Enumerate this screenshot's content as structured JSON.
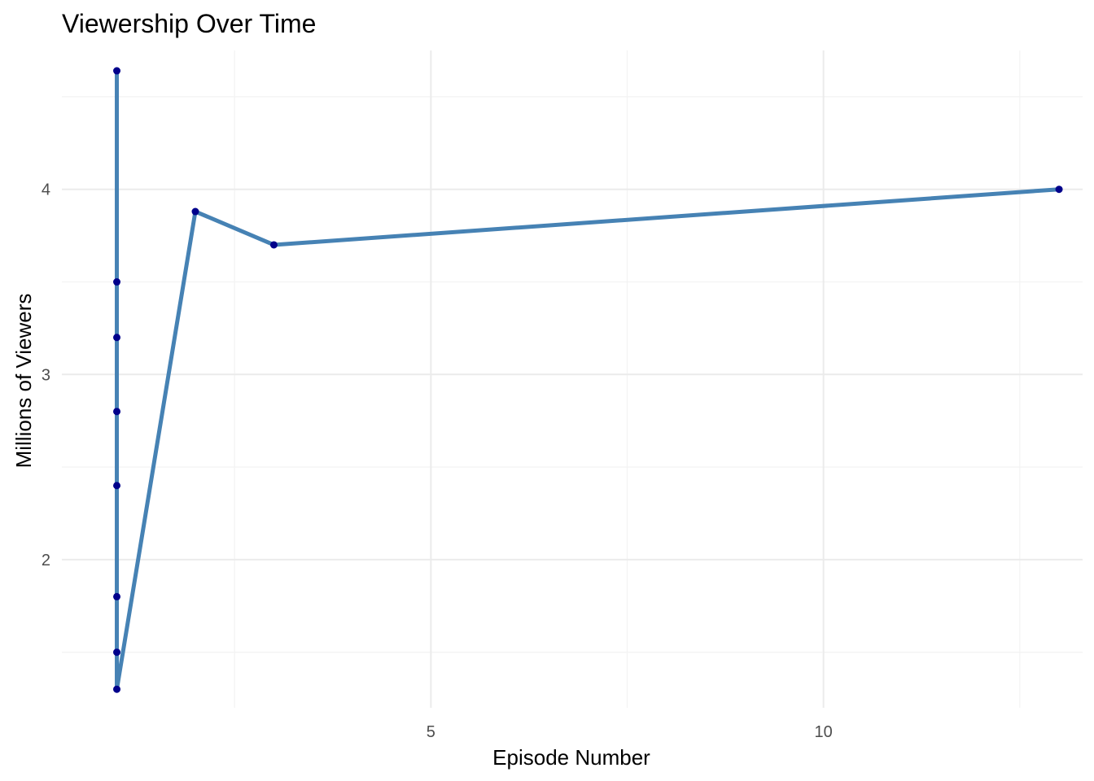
{
  "chart_data": {
    "type": "line",
    "title": "Viewership Over Time",
    "xlabel": "Episode Number",
    "ylabel": "Millions of Viewers",
    "xlim": [
      0.3,
      13.3
    ],
    "ylim": [
      1.2,
      4.75
    ],
    "x_major_ticks": [
      5,
      10
    ],
    "x_minor_ticks": [
      2.5,
      7.5,
      12.5
    ],
    "y_major_ticks": [
      2,
      3,
      4
    ],
    "y_minor_ticks": [
      1.5,
      2.5,
      3.5,
      4.5
    ],
    "grid": true,
    "legend": "none",
    "colors": {
      "line": "#4682b4",
      "points": "#00008b"
    },
    "series": [
      {
        "x": [
          1,
          1,
          1,
          1,
          1,
          1,
          1,
          1,
          2,
          3,
          13
        ],
        "y": [
          4.64,
          3.5,
          3.2,
          2.8,
          2.4,
          1.8,
          1.5,
          1.3,
          3.88,
          3.7,
          4.0
        ]
      }
    ]
  }
}
